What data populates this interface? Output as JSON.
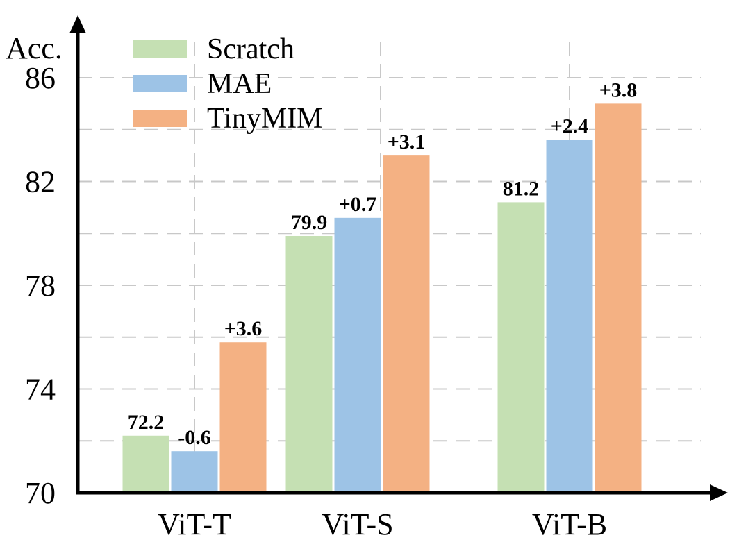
{
  "chart_data": {
    "type": "bar",
    "ylabel": "Acc.",
    "xlabel": "",
    "title": "",
    "ylim": [
      70,
      86
    ],
    "yticks": [
      70,
      74,
      78,
      82,
      86
    ],
    "ygrid": [
      72,
      74,
      76,
      78,
      80,
      82,
      84,
      86
    ],
    "grid": true,
    "legend_position": "top-left",
    "categories": [
      "ViT-T",
      "ViT-S",
      "ViT-B"
    ],
    "series": [
      {
        "name": "Scratch",
        "color": "#c5e0b3",
        "values": [
          72.2,
          79.9,
          81.2
        ],
        "labels": [
          "72.2",
          "79.9",
          "81.2"
        ]
      },
      {
        "name": "MAE",
        "color": "#9dc3e6",
        "values": [
          71.6,
          80.6,
          83.6
        ],
        "labels": [
          "-0.6",
          "+0.7",
          "+2.4"
        ]
      },
      {
        "name": "TinyMIM",
        "color": "#f4b183",
        "values": [
          75.8,
          83.0,
          85.0
        ],
        "labels": [
          "+3.6",
          "+3.1",
          "+3.8"
        ]
      }
    ]
  }
}
